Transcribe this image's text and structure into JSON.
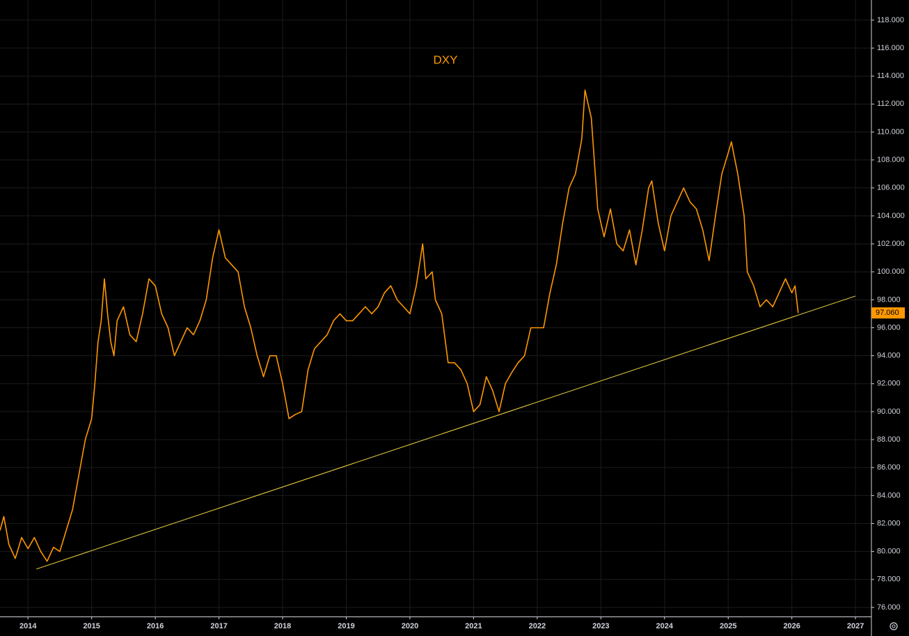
{
  "chart_data": {
    "type": "line",
    "title": "DXY",
    "x": [
      2013.56,
      2013.62,
      2013.7,
      2013.8,
      2013.9,
      2014.0,
      2014.1,
      2014.2,
      2014.3,
      2014.4,
      2014.5,
      2014.6,
      2014.7,
      2014.8,
      2014.9,
      2015.0,
      2015.05,
      2015.1,
      2015.15,
      2015.2,
      2015.25,
      2015.3,
      2015.35,
      2015.4,
      2015.5,
      2015.6,
      2015.7,
      2015.8,
      2015.9,
      2016.0,
      2016.1,
      2016.2,
      2016.3,
      2016.4,
      2016.5,
      2016.6,
      2016.7,
      2016.8,
      2016.9,
      2017.0,
      2017.1,
      2017.2,
      2017.3,
      2017.4,
      2017.5,
      2017.6,
      2017.7,
      2017.8,
      2017.9,
      2018.0,
      2018.1,
      2018.2,
      2018.3,
      2018.4,
      2018.5,
      2018.6,
      2018.7,
      2018.8,
      2018.9,
      2019.0,
      2019.1,
      2019.2,
      2019.3,
      2019.4,
      2019.5,
      2019.6,
      2019.7,
      2019.8,
      2019.9,
      2020.0,
      2020.1,
      2020.2,
      2020.25,
      2020.35,
      2020.4,
      2020.5,
      2020.6,
      2020.7,
      2020.8,
      2020.9,
      2021.0,
      2021.1,
      2021.2,
      2021.3,
      2021.4,
      2021.5,
      2021.6,
      2021.7,
      2021.8,
      2021.9,
      2022.0,
      2022.1,
      2022.2,
      2022.3,
      2022.4,
      2022.5,
      2022.6,
      2022.7,
      2022.75,
      2022.85,
      2022.95,
      2023.05,
      2023.15,
      2023.25,
      2023.35,
      2023.45,
      2023.55,
      2023.65,
      2023.75,
      2023.8,
      2023.9,
      2024.0,
      2024.1,
      2024.2,
      2024.3,
      2024.4,
      2024.5,
      2024.6,
      2024.7,
      2024.8,
      2024.9,
      2025.0,
      2025.05,
      2025.15,
      2025.25,
      2025.3,
      2025.4,
      2025.5,
      2025.6,
      2025.7,
      2025.8,
      2025.9,
      2026.0,
      2026.05,
      2026.1
    ],
    "series": [
      {
        "name": "DXY",
        "color": "#ff9800",
        "values": [
          81.5,
          82.5,
          80.5,
          79.5,
          81,
          80.2,
          81,
          80,
          79.3,
          80.3,
          80,
          81.5,
          83,
          85.5,
          88,
          89.5,
          92,
          95,
          96.5,
          99.5,
          97,
          95,
          94,
          96.5,
          97.5,
          95.5,
          95,
          97,
          99.5,
          99,
          97,
          96,
          94,
          95,
          96,
          95.5,
          96.5,
          98,
          101,
          103,
          101,
          100.5,
          100,
          97.5,
          96,
          94,
          92.5,
          94,
          94,
          92,
          89.5,
          89.8,
          90,
          93,
          94.5,
          95,
          95.5,
          96.5,
          97,
          96.5,
          96.5,
          97,
          97.5,
          97,
          97.5,
          98.5,
          99,
          98,
          97.5,
          97,
          99,
          102,
          99.5,
          100,
          98,
          97,
          93.5,
          93.5,
          93,
          92,
          90,
          90.5,
          92.5,
          91.5,
          90,
          92,
          92.8,
          93.5,
          94,
          96,
          96,
          96,
          98.5,
          100.5,
          103.5,
          106,
          107,
          109.5,
          113,
          111,
          104.5,
          102.5,
          104.5,
          102,
          101.5,
          103,
          100.5,
          103,
          106,
          106.5,
          103.5,
          101.5,
          104,
          105,
          106,
          105,
          104.5,
          103,
          100.8,
          104,
          107,
          108.5,
          109.3,
          107,
          104,
          100,
          99,
          97.5,
          98,
          97.5,
          98.5,
          99.5,
          98.5,
          99,
          97.06
        ]
      }
    ],
    "trendline": {
      "color": "#f5d742",
      "x": [
        2014.13,
        2027.0
      ],
      "values": [
        78.74,
        98.27
      ]
    },
    "last_value": {
      "value": 97.06,
      "label": "97.060"
    },
    "xlim": [
      2013.56,
      2027.25
    ],
    "ylim": [
      75.35,
      119.44
    ],
    "xticks": [
      2014,
      2015,
      2016,
      2017,
      2018,
      2019,
      2020,
      2021,
      2022,
      2023,
      2024,
      2025,
      2026,
      2027
    ],
    "yticks": [
      {
        "value": 76,
        "label": "76.000"
      },
      {
        "value": 78,
        "label": "78.000"
      },
      {
        "value": 80,
        "label": "80.000"
      },
      {
        "value": 82,
        "label": "82.000"
      },
      {
        "value": 84,
        "label": "84.000"
      },
      {
        "value": 86,
        "label": "86.000"
      },
      {
        "value": 88,
        "label": "88.000"
      },
      {
        "value": 90,
        "label": "90.000"
      },
      {
        "value": 92,
        "label": "92.000"
      },
      {
        "value": 94,
        "label": "94.000"
      },
      {
        "value": 96,
        "label": "96.000"
      },
      {
        "value": 98,
        "label": "98.000"
      },
      {
        "value": 100,
        "label": "100.000"
      },
      {
        "value": 102,
        "label": "102.000"
      },
      {
        "value": 104,
        "label": "104.000"
      },
      {
        "value": 106,
        "label": "106.000"
      },
      {
        "value": 108,
        "label": "108.000"
      },
      {
        "value": 110,
        "label": "110.000"
      },
      {
        "value": 112,
        "label": "112.000"
      },
      {
        "value": 114,
        "label": "114.000"
      },
      {
        "value": 116,
        "label": "116.000"
      },
      {
        "value": 118,
        "label": "118.000"
      }
    ],
    "grid": true
  }
}
